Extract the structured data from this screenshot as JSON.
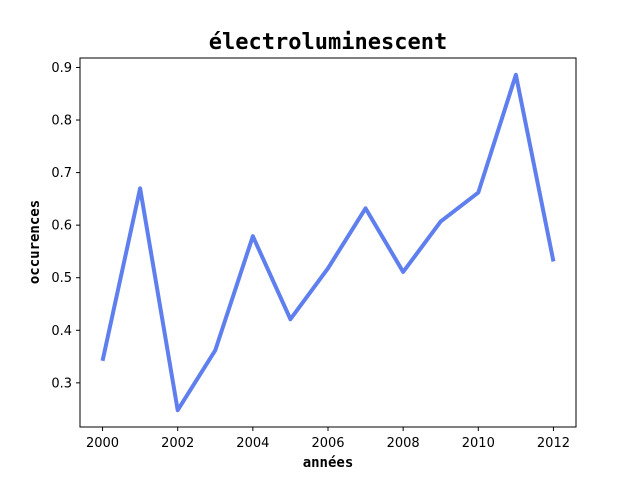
{
  "chart_data": {
    "type": "line",
    "title": "électroluminescent",
    "xlabel": "années",
    "ylabel": "occurences",
    "x": [
      2000,
      2001,
      2002,
      2003,
      2004,
      2005,
      2006,
      2007,
      2008,
      2009,
      2010,
      2011,
      2012
    ],
    "series": [
      {
        "values": [
          0.342,
          0.67,
          0.248,
          0.362,
          0.579,
          0.421,
          0.518,
          0.632,
          0.511,
          0.607,
          0.662,
          0.886,
          0.531
        ],
        "color": "#5f7fef"
      }
    ],
    "xlim": [
      1999.4,
      2012.6
    ],
    "ylim": [
      0.216,
      0.918
    ],
    "xticks": [
      "2000",
      "2002",
      "2004",
      "2006",
      "2008",
      "2010",
      "2012"
    ],
    "yticks": [
      "0.3",
      "0.4",
      "0.5",
      "0.6",
      "0.7",
      "0.8",
      "0.9"
    ],
    "grid": false
  }
}
